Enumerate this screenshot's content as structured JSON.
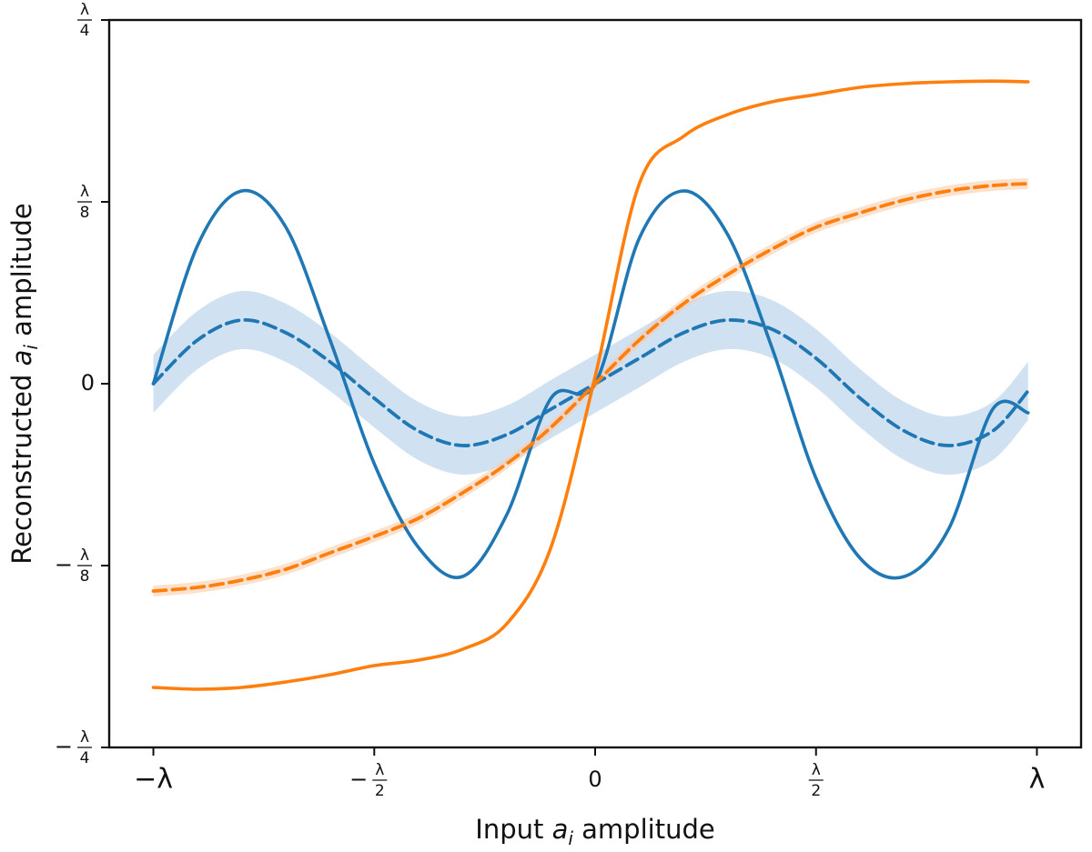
{
  "chart_data": {
    "type": "line",
    "title": "",
    "xlabel_parts": [
      "Input ",
      "a",
      "i",
      " amplitude"
    ],
    "ylabel_parts": [
      "Reconstructed ",
      "a",
      "i",
      " amplitude"
    ],
    "xlim": [
      -1.1,
      1.1
    ],
    "ylim": [
      -1,
      1
    ],
    "grid": false,
    "x_ticks": [
      {
        "value": -1,
        "label": "−λ",
        "frac": false
      },
      {
        "value": -0.5,
        "label": "−",
        "num": "λ",
        "den": "2",
        "frac": true
      },
      {
        "value": 0,
        "label": "0",
        "frac": false
      },
      {
        "value": 0.5,
        "label": "",
        "num": "λ",
        "den": "2",
        "frac": true
      },
      {
        "value": 1,
        "label": "λ",
        "frac": false
      }
    ],
    "y_ticks": [
      {
        "value": 1,
        "label": "",
        "num": "λ",
        "den": "4",
        "frac": true
      },
      {
        "value": 0.5,
        "label": "",
        "num": "λ",
        "den": "8",
        "frac": true
      },
      {
        "value": 0,
        "label": "0",
        "frac": false
      },
      {
        "value": -0.5,
        "label": "−",
        "num": "λ",
        "den": "8",
        "frac": true
      },
      {
        "value": -1,
        "label": "−",
        "num": "λ",
        "den": "4",
        "frac": true
      }
    ],
    "x": [
      -1.0,
      -0.9,
      -0.8,
      -0.7,
      -0.6,
      -0.5,
      -0.4,
      -0.3,
      -0.2,
      -0.1,
      0.0,
      0.1,
      0.2,
      0.3,
      0.4,
      0.5,
      0.6,
      0.7,
      0.8,
      0.9,
      0.98
    ],
    "series": [
      {
        "color": "#1f77b4",
        "style": "solid",
        "values": [
          0.0,
          0.38,
          0.53,
          0.43,
          0.12,
          -0.22,
          -0.45,
          -0.53,
          -0.36,
          -0.04,
          0.0,
          0.4,
          0.53,
          0.41,
          0.1,
          -0.26,
          -0.48,
          -0.53,
          -0.4,
          -0.07,
          -0.08
        ]
      },
      {
        "color": "#1f77b4",
        "style": "dashed",
        "values": [
          0.0,
          0.12,
          0.175,
          0.14,
          0.06,
          -0.04,
          -0.13,
          -0.17,
          -0.14,
          -0.07,
          0.0,
          0.07,
          0.14,
          0.175,
          0.15,
          0.07,
          -0.04,
          -0.13,
          -0.17,
          -0.13,
          -0.02
        ],
        "band": 0.08,
        "band_color": "#aac9e6"
      },
      {
        "color": "#ff7f0e",
        "style": "solid",
        "values": [
          -0.835,
          -0.84,
          -0.835,
          -0.82,
          -0.8,
          -0.775,
          -0.76,
          -0.73,
          -0.66,
          -0.45,
          0.02,
          0.55,
          0.68,
          0.74,
          0.775,
          0.795,
          0.815,
          0.825,
          0.83,
          0.832,
          0.83
        ]
      },
      {
        "color": "#ff7f0e",
        "style": "dashed",
        "values": [
          -0.57,
          -0.56,
          -0.54,
          -0.51,
          -0.465,
          -0.42,
          -0.37,
          -0.3,
          -0.22,
          -0.12,
          0.0,
          0.12,
          0.22,
          0.3,
          0.37,
          0.43,
          0.47,
          0.505,
          0.53,
          0.545,
          0.55
        ],
        "band": 0.015,
        "band_color": "#fbc9a3"
      }
    ]
  }
}
